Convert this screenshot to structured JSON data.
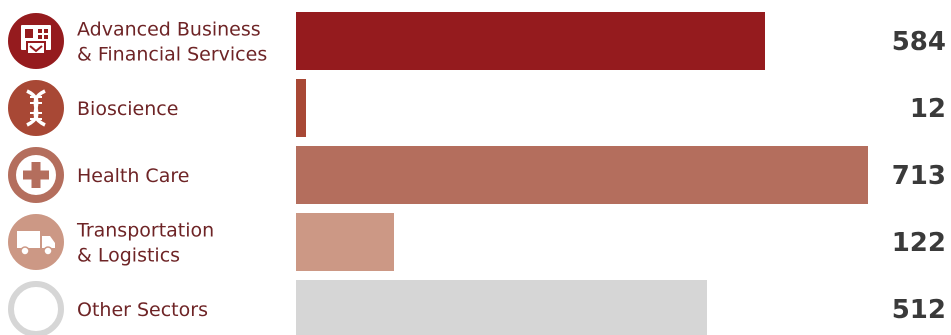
{
  "chart_data": {
    "type": "bar",
    "orientation": "horizontal",
    "categories": [
      [
        "Advanced Business",
        "& Financial Services"
      ],
      [
        "Bioscience"
      ],
      [
        "Health Care"
      ],
      [
        "Transportation",
        "& Logistics"
      ],
      [
        "Other Sectors"
      ]
    ],
    "values": [
      584,
      12,
      713,
      122,
      512
    ],
    "colors": [
      "#951b1e",
      "#a84835",
      "#b46e5d",
      "#cc9885",
      "#d6d6d6"
    ],
    "icons": [
      "building-icon",
      "dna-icon",
      "medical-cross-icon",
      "truck-icon",
      "ring-icon"
    ],
    "xlim": [
      0,
      713
    ],
    "grid": false,
    "legend": "none"
  }
}
